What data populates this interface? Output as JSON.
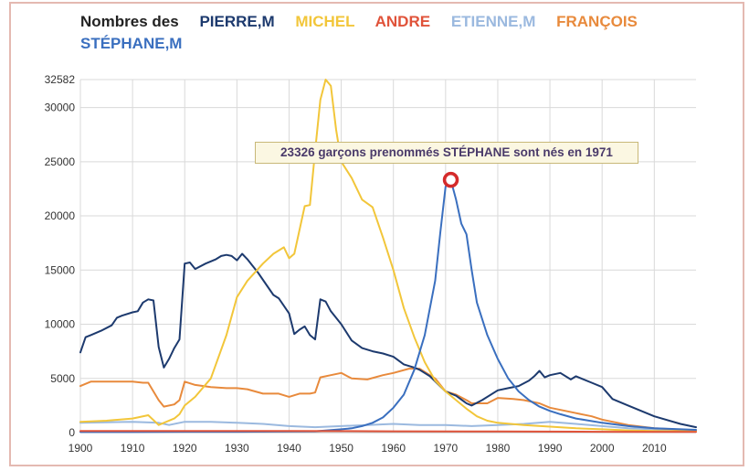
{
  "legend": {
    "lead": "Nombres des",
    "items": [
      {
        "label": "PIERRE,M",
        "color": "#1d3a6e"
      },
      {
        "label": "MICHEL",
        "color": "#f2c63a"
      },
      {
        "label": "ANDRE",
        "color": "#e0533a"
      },
      {
        "label": "ETIENNE,M",
        "color": "#9bb9df"
      },
      {
        "label": "FRANÇOIS",
        "color": "#e88a3c"
      },
      {
        "label": "STÉPHANE,M",
        "color": "#3a6fbf"
      }
    ]
  },
  "tooltip": {
    "text": "23326 garçons prenommés STÉPHANE sont nés en 1971",
    "year": 1971,
    "value": 23326,
    "marker_color": "#d42a2a"
  },
  "chart_data": {
    "type": "line",
    "ylim": [
      0,
      32582
    ],
    "xlim": [
      1900,
      2018
    ],
    "y_ticks": [
      {
        "label": "0",
        "value": 0
      },
      {
        "label": "5000",
        "value": 5000
      },
      {
        "label": "10000",
        "value": 10000
      },
      {
        "label": "15000",
        "value": 15000
      },
      {
        "label": "20000",
        "value": 20000
      },
      {
        "label": "25000",
        "value": 25000
      },
      {
        "label": "30000",
        "value": 30000
      },
      {
        "label": "32582",
        "value": 32582
      }
    ],
    "x_ticks": [
      {
        "label": "1900",
        "value": 1900
      },
      {
        "label": "1910",
        "value": 1910
      },
      {
        "label": "1920",
        "value": 1920
      },
      {
        "label": "1930",
        "value": 1930
      },
      {
        "label": "1940",
        "value": 1940
      },
      {
        "label": "1950",
        "value": 1950
      },
      {
        "label": "1960",
        "value": 1960
      },
      {
        "label": "1970",
        "value": 1970
      },
      {
        "label": "1980",
        "value": 1980
      },
      {
        "label": "1990",
        "value": 1990
      },
      {
        "label": "2000",
        "value": 2000
      },
      {
        "label": "2010",
        "value": 2010
      }
    ],
    "grid": true,
    "series": [
      {
        "name": "ETIENNE,M",
        "color": "#9bb9df",
        "x": [
          1900,
          1905,
          1910,
          1915,
          1917,
          1920,
          1925,
          1930,
          1935,
          1940,
          1945,
          1950,
          1955,
          1960,
          1965,
          1970,
          1975,
          1980,
          1985,
          1990,
          1995,
          2000,
          2005,
          2010,
          2018
        ],
        "y": [
          900,
          950,
          1000,
          900,
          700,
          1000,
          1000,
          900,
          800,
          600,
          500,
          600,
          700,
          800,
          700,
          700,
          600,
          700,
          800,
          1000,
          800,
          600,
          400,
          300,
          200
        ]
      },
      {
        "name": "FRANÇOIS",
        "color": "#e88a3c",
        "x": [
          1900,
          1902,
          1905,
          1908,
          1910,
          1912,
          1913,
          1915,
          1916,
          1918,
          1919,
          1920,
          1922,
          1925,
          1928,
          1930,
          1932,
          1935,
          1938,
          1940,
          1942,
          1944,
          1945,
          1946,
          1948,
          1950,
          1952,
          1955,
          1958,
          1960,
          1963,
          1965,
          1968,
          1970,
          1972,
          1974,
          1975,
          1978,
          1980,
          1983,
          1985,
          1988,
          1990,
          1993,
          1995,
          1998,
          2000,
          2005,
          2010,
          2018
        ],
        "y": [
          4300,
          4700,
          4700,
          4700,
          4700,
          4600,
          4600,
          3000,
          2400,
          2600,
          3000,
          4700,
          4400,
          4200,
          4100,
          4100,
          4000,
          3600,
          3600,
          3300,
          3600,
          3600,
          3700,
          5100,
          5300,
          5500,
          5000,
          4900,
          5300,
          5500,
          5900,
          5900,
          5000,
          3800,
          3500,
          3000,
          2700,
          2700,
          3200,
          3100,
          3000,
          2700,
          2300,
          2000,
          1800,
          1500,
          1200,
          700,
          400,
          200
        ]
      },
      {
        "name": "PIERRE,M",
        "color": "#1d3a6e",
        "x": [
          1900,
          1901,
          1902,
          1904,
          1906,
          1907,
          1908,
          1910,
          1911,
          1912,
          1913,
          1914,
          1915,
          1916,
          1917,
          1918,
          1919,
          1920,
          1921,
          1922,
          1924,
          1926,
          1927,
          1928,
          1929,
          1930,
          1931,
          1932,
          1933,
          1934,
          1935,
          1937,
          1938,
          1940,
          1941,
          1942,
          1943,
          1944,
          1945,
          1946,
          1947,
          1948,
          1950,
          1952,
          1954,
          1956,
          1958,
          1960,
          1962,
          1964,
          1965,
          1967,
          1970,
          1972,
          1974,
          1975,
          1977,
          1980,
          1982,
          1984,
          1986,
          1987,
          1988,
          1989,
          1990,
          1992,
          1994,
          1995,
          1996,
          1998,
          2000,
          2002,
          2005,
          2010,
          2015,
          2018
        ],
        "y": [
          7400,
          8800,
          9000,
          9400,
          9900,
          10600,
          10800,
          11100,
          11200,
          12000,
          12300,
          12200,
          7900,
          6000,
          6800,
          7800,
          8600,
          15600,
          15700,
          15100,
          15600,
          16000,
          16300,
          16400,
          16300,
          15900,
          16500,
          16000,
          15400,
          14800,
          14100,
          12700,
          12400,
          11000,
          9100,
          9500,
          9800,
          9000,
          8600,
          12300,
          12100,
          11200,
          10000,
          8500,
          7800,
          7500,
          7300,
          7000,
          6300,
          6000,
          5800,
          5200,
          3800,
          3400,
          2700,
          2500,
          3000,
          3900,
          4100,
          4300,
          4800,
          5200,
          5700,
          5100,
          5300,
          5500,
          4900,
          5200,
          5000,
          4600,
          4200,
          3100,
          2500,
          1500,
          800,
          500
        ]
      },
      {
        "name": "MICHEL",
        "color": "#f2c63a",
        "x": [
          1900,
          1905,
          1910,
          1913,
          1915,
          1916,
          1918,
          1919,
          1920,
          1922,
          1925,
          1928,
          1930,
          1932,
          1935,
          1937,
          1939,
          1940,
          1941,
          1943,
          1944,
          1945,
          1946,
          1947,
          1948,
          1949,
          1950,
          1952,
          1954,
          1956,
          1958,
          1960,
          1962,
          1964,
          1966,
          1968,
          1970,
          1972,
          1974,
          1976,
          1978,
          1980,
          1985,
          1990,
          1995,
          2000,
          2005,
          2010,
          2018
        ],
        "y": [
          1000,
          1100,
          1300,
          1600,
          700,
          900,
          1300,
          1700,
          2500,
          3300,
          5000,
          9000,
          12500,
          14000,
          15600,
          16500,
          17100,
          16100,
          16500,
          20900,
          21000,
          26000,
          30700,
          32582,
          32000,
          28000,
          25000,
          23500,
          21500,
          20800,
          18000,
          15000,
          11500,
          8800,
          6500,
          4800,
          3800,
          3000,
          2200,
          1500,
          1100,
          900,
          700,
          550,
          400,
          300,
          200,
          150,
          100
        ]
      },
      {
        "name": "STÉPHANE,M",
        "color": "#3a6fbf",
        "x": [
          1900,
          1910,
          1920,
          1930,
          1940,
          1945,
          1950,
          1952,
          1954,
          1956,
          1958,
          1960,
          1962,
          1964,
          1966,
          1968,
          1969,
          1970,
          1971,
          1972,
          1973,
          1974,
          1975,
          1976,
          1978,
          1980,
          1982,
          1984,
          1986,
          1988,
          1990,
          1992,
          1995,
          2000,
          2005,
          2010,
          2018
        ],
        "y": [
          50,
          50,
          80,
          80,
          100,
          120,
          300,
          400,
          600,
          900,
          1400,
          2300,
          3500,
          5800,
          9000,
          14000,
          18500,
          22700,
          23326,
          21500,
          19300,
          18300,
          15000,
          12000,
          9000,
          6800,
          5000,
          3800,
          3000,
          2400,
          2000,
          1700,
          1300,
          900,
          600,
          400,
          250
        ]
      },
      {
        "name": "ANDRE",
        "color": "#e0533a",
        "x": [
          1900,
          1920,
          1940,
          1960,
          1980,
          2000,
          2018
        ],
        "y": [
          150,
          150,
          150,
          120,
          100,
          80,
          60
        ]
      }
    ]
  }
}
